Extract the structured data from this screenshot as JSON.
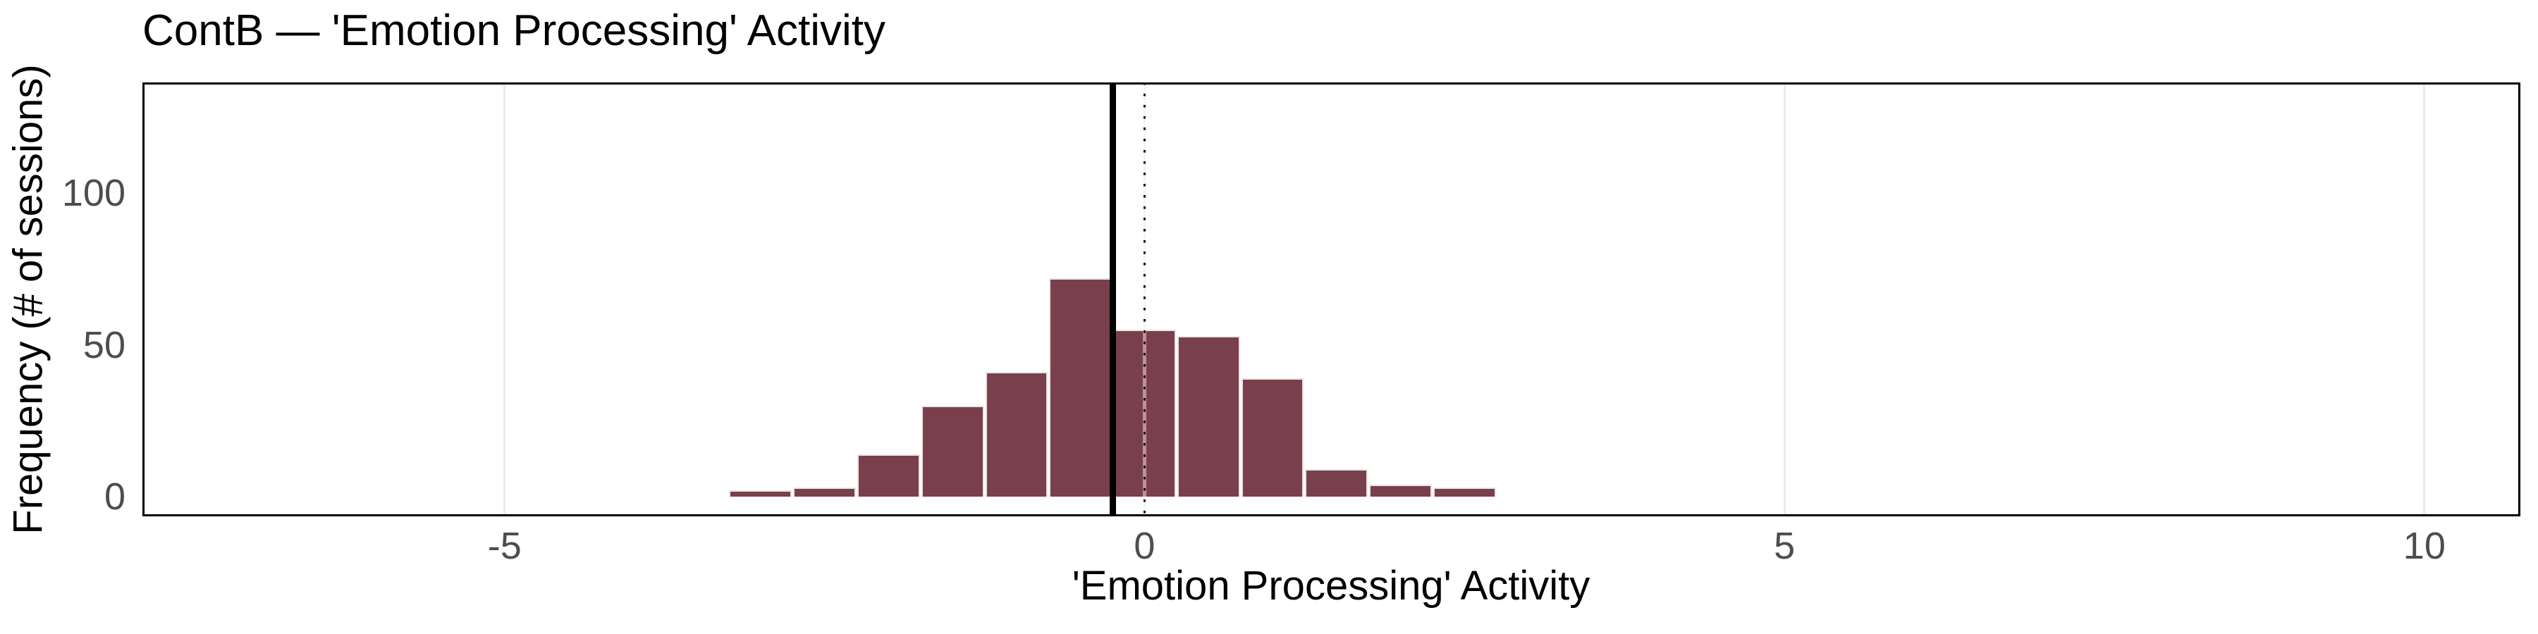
{
  "title": "ContB — 'Emotion Processing' Activity",
  "chart_data": {
    "type": "bar",
    "subtype": "histogram",
    "title": "ContB — 'Emotion Processing' Activity",
    "xlabel": "'Emotion Processing' Activity",
    "ylabel": "Frequency (# of sessions)",
    "bin_start": -3.25,
    "bin_width": 0.5,
    "counts": [
      2,
      3,
      14,
      30,
      41,
      72,
      55,
      53,
      39,
      9,
      4,
      3
    ],
    "bin_edges": [
      -3.25,
      -2.75,
      -2.25,
      -1.75,
      -1.25,
      -0.75,
      -0.25,
      0.25,
      0.75,
      1.25,
      1.75,
      2.25,
      2.75
    ],
    "x_ticks": [
      -5,
      0,
      5,
      10
    ],
    "x_tick_labels": [
      "-5",
      "0",
      "5",
      "10"
    ],
    "y_ticks": [
      0,
      50,
      100
    ],
    "y_tick_labels": [
      "0",
      "50",
      "100"
    ],
    "xlim": [
      -7.83,
      10.75
    ],
    "ylim": [
      -6.5,
      136.5
    ],
    "reference_lines": [
      {
        "x": -0.25,
        "style": "solid",
        "color": "#000000"
      },
      {
        "x": 0,
        "style": "dotted",
        "color": "#000000"
      }
    ],
    "grid": "vertical-only",
    "legend": "none",
    "colors": {
      "bar_fill": "#7A3F4D",
      "bar_outline": "#EFE2E2",
      "gridline": "#EBEBEB",
      "tick_text": "#4D4D4D",
      "axis_text": "#000000",
      "panel_border": "#000000"
    }
  }
}
